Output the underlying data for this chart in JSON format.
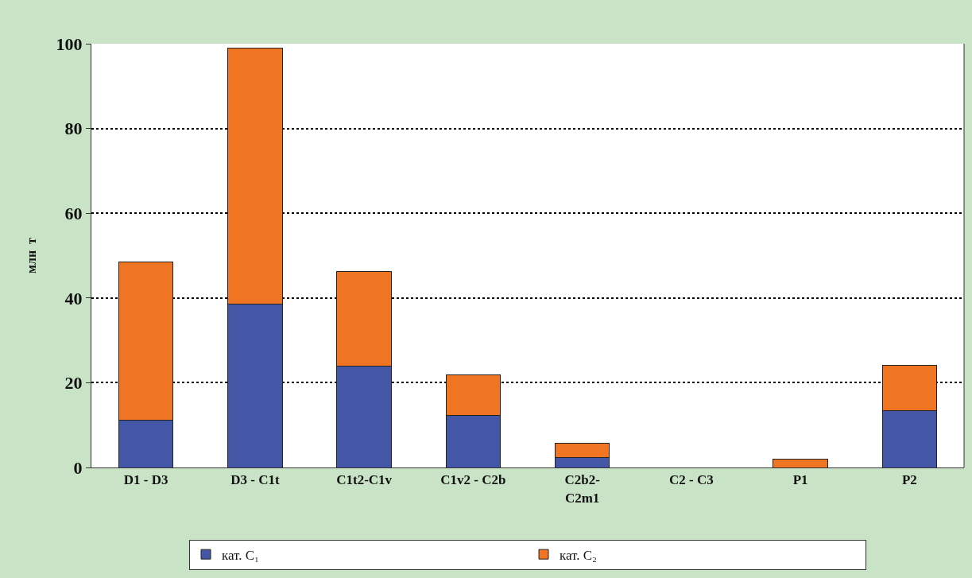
{
  "chart_data": {
    "type": "bar",
    "stacked": true,
    "ylabel": "млн  т",
    "categories": [
      "D1 - D3",
      "D3 - C1t",
      "C1t2-C1v",
      "C1v2 - C2b",
      "C2b2- C2m1",
      "C2 - C3",
      "P1",
      "P2"
    ],
    "series": [
      {
        "name": "кат. C₁",
        "color": "#4457a6",
        "values": [
          11.1,
          38.5,
          24,
          12.2,
          2.3,
          0,
          0,
          13.4
        ]
      },
      {
        "name": "кат. C₂",
        "color": "#f07522",
        "values": [
          37.4,
          60.5,
          22.2,
          9.6,
          3.4,
          0,
          1.9,
          10.8
        ]
      }
    ],
    "ylim": [
      0,
      100
    ],
    "yticks": [
      0,
      20,
      40,
      60,
      80,
      100
    ],
    "grid": "y",
    "legend": "bottom"
  }
}
